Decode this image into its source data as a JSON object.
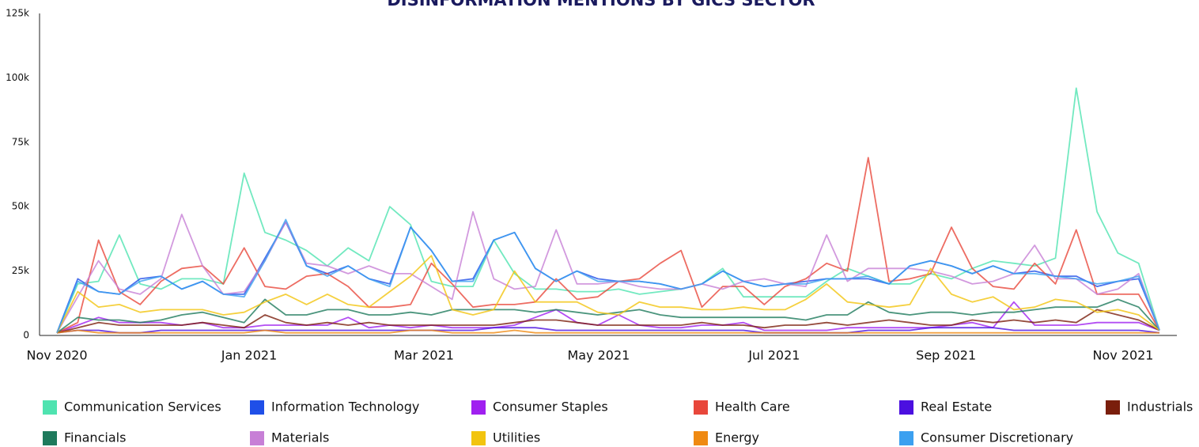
{
  "chart_data": {
    "type": "line",
    "title": "DISINFORMATION MENTIONS BY GICS SECTOR",
    "x": [
      0,
      1,
      2,
      3,
      4,
      5,
      6,
      7,
      8,
      9,
      10,
      11,
      12,
      13,
      14,
      15,
      16,
      17,
      18,
      19,
      20,
      21,
      22,
      23,
      24,
      25,
      26,
      27,
      28,
      29,
      30,
      31,
      32,
      33,
      34,
      35,
      36,
      37,
      38,
      39,
      40,
      41,
      42,
      43,
      44,
      45,
      46,
      47,
      48,
      49,
      50,
      51,
      52,
      53
    ],
    "xlim": [
      0,
      53
    ],
    "xticks": [
      {
        "value": 0,
        "label": "Nov 2020"
      },
      {
        "value": 9.24,
        "label": "Jan 2021"
      },
      {
        "value": 17.64,
        "label": "Mar 2021"
      },
      {
        "value": 26.04,
        "label": "May 2021"
      },
      {
        "value": 34.48,
        "label": "Jul 2021"
      },
      {
        "value": 42.74,
        "label": "Sep 2021"
      },
      {
        "value": 51.25,
        "label": "Nov 2021"
      }
    ],
    "ylim": [
      0,
      125000
    ],
    "yticks": [
      {
        "value": 0,
        "label": "0"
      },
      {
        "value": 25000,
        "label": "25k"
      },
      {
        "value": 50000,
        "label": "50k"
      },
      {
        "value": 75000,
        "label": "75k"
      },
      {
        "value": 100000,
        "label": "100k"
      },
      {
        "value": 125000,
        "label": "125k"
      }
    ],
    "series": [
      {
        "name": "Communication Services",
        "color": "#4fe3b0",
        "values": [
          1000,
          20000,
          21000,
          39000,
          20000,
          18000,
          22000,
          22000,
          20000,
          63000,
          40000,
          37000,
          33000,
          27000,
          34000,
          29000,
          50000,
          43000,
          21000,
          19000,
          19000,
          37000,
          24000,
          18000,
          18000,
          17000,
          17000,
          18000,
          16000,
          17000,
          18000,
          20000,
          26000,
          15000,
          15000,
          15000,
          15000,
          21000,
          26000,
          23000,
          20000,
          20000,
          24000,
          22000,
          26000,
          29000,
          28000,
          27000,
          30000,
          96000,
          48000,
          32000,
          28000,
          2000
        ]
      },
      {
        "name": "Information Technology",
        "color": "#1f4fe8",
        "values": [
          1000,
          22000,
          17000,
          16000,
          22000,
          23000,
          18000,
          21000,
          16000,
          16000,
          30000,
          44000,
          27000,
          24000,
          27000,
          22000,
          20000,
          42000,
          33000,
          21000,
          22000,
          37000,
          40000,
          26000,
          21000,
          25000,
          22000,
          21000,
          21000,
          20000,
          18000,
          20000,
          25000,
          21000,
          19000,
          20000,
          21000,
          22000,
          22000,
          22000,
          20000,
          27000,
          29000,
          27000,
          24000,
          27000,
          24000,
          25000,
          23000,
          23000,
          19000,
          21000,
          22000,
          2000
        ]
      },
      {
        "name": "Consumer Staples",
        "color": "#a020f0",
        "values": [
          1000,
          4000,
          7000,
          5000,
          5000,
          5000,
          4000,
          5000,
          3000,
          3000,
          4000,
          4000,
          4000,
          4000,
          7000,
          3000,
          4000,
          3000,
          4000,
          3000,
          3000,
          3000,
          4000,
          7000,
          10000,
          5000,
          4000,
          8000,
          4000,
          3000,
          3000,
          4000,
          4000,
          5000,
          2000,
          2000,
          2000,
          2000,
          3000,
          3000,
          3000,
          3000,
          3000,
          4000,
          5000,
          3000,
          13000,
          4000,
          4000,
          4000,
          5000,
          5000,
          5000,
          2000
        ]
      },
      {
        "name": "Health Care",
        "color": "#e8473b",
        "values": [
          1000,
          5000,
          37000,
          17000,
          12000,
          21000,
          26000,
          27000,
          20000,
          34000,
          19000,
          18000,
          23000,
          24000,
          19000,
          11000,
          11000,
          12000,
          28000,
          20000,
          11000,
          12000,
          12000,
          13000,
          22000,
          14000,
          15000,
          21000,
          22000,
          28000,
          33000,
          11000,
          19000,
          19000,
          12000,
          19000,
          22000,
          28000,
          25000,
          69000,
          21000,
          22000,
          24000,
          42000,
          26000,
          19000,
          18000,
          28000,
          20000,
          41000,
          16000,
          16000,
          16000,
          2000
        ]
      },
      {
        "name": "Real Estate",
        "color": "#4b0fe0",
        "values": [
          1000,
          2000,
          2000,
          1000,
          1000,
          2000,
          2000,
          2000,
          2000,
          2000,
          2000,
          2000,
          2000,
          2000,
          2000,
          2000,
          2000,
          2000,
          2000,
          2000,
          2000,
          3000,
          3000,
          3000,
          2000,
          2000,
          2000,
          2000,
          2000,
          2000,
          2000,
          2000,
          2000,
          2000,
          1000,
          1000,
          1000,
          1000,
          1000,
          2000,
          2000,
          2000,
          3000,
          3000,
          3000,
          3000,
          2000,
          2000,
          2000,
          2000,
          2000,
          2000,
          2000,
          1000
        ]
      },
      {
        "name": "Industrials",
        "color": "#7a1e0c",
        "values": [
          1000,
          3000,
          5000,
          4000,
          4000,
          4000,
          4000,
          5000,
          4000,
          3000,
          8000,
          5000,
          4000,
          5000,
          4000,
          5000,
          4000,
          4000,
          4000,
          4000,
          4000,
          4000,
          5000,
          6000,
          6000,
          5000,
          4000,
          4000,
          4000,
          4000,
          4000,
          5000,
          4000,
          4000,
          3000,
          4000,
          4000,
          5000,
          4000,
          5000,
          6000,
          5000,
          4000,
          4000,
          6000,
          5000,
          6000,
          5000,
          6000,
          5000,
          10000,
          8000,
          6000,
          2000
        ]
      },
      {
        "name": "Financials",
        "color": "#1e7a5c",
        "values": [
          1000,
          7000,
          6000,
          6000,
          5000,
          6000,
          8000,
          9000,
          7000,
          5000,
          14000,
          8000,
          8000,
          10000,
          10000,
          8000,
          8000,
          9000,
          8000,
          10000,
          10000,
          10000,
          10000,
          9000,
          10000,
          9000,
          8000,
          9000,
          10000,
          8000,
          7000,
          7000,
          7000,
          7000,
          7000,
          7000,
          6000,
          8000,
          8000,
          13000,
          9000,
          8000,
          9000,
          9000,
          8000,
          9000,
          9000,
          10000,
          11000,
          11000,
          11000,
          14000,
          11000,
          2000
        ]
      },
      {
        "name": "Materials",
        "color": "#c77fd6",
        "values": [
          1000,
          15000,
          29000,
          18000,
          16000,
          22000,
          47000,
          27000,
          16000,
          17000,
          29000,
          44000,
          28000,
          27000,
          24000,
          27000,
          24000,
          24000,
          19000,
          14000,
          48000,
          22000,
          18000,
          19000,
          41000,
          20000,
          20000,
          21000,
          19000,
          18000,
          18000,
          20000,
          18000,
          21000,
          22000,
          20000,
          19000,
          39000,
          21000,
          26000,
          26000,
          26000,
          25000,
          23000,
          20000,
          21000,
          24000,
          35000,
          22000,
          22000,
          16000,
          18000,
          24000,
          2000
        ]
      },
      {
        "name": "Utilities",
        "color": "#f2c40f",
        "values": [
          1000,
          17000,
          11000,
          12000,
          9000,
          10000,
          10000,
          10000,
          8000,
          9000,
          13000,
          16000,
          12000,
          16000,
          12000,
          11000,
          17000,
          23000,
          31000,
          10000,
          8000,
          10000,
          25000,
          13000,
          13000,
          13000,
          9000,
          8000,
          13000,
          11000,
          11000,
          10000,
          10000,
          11000,
          10000,
          10000,
          14000,
          20000,
          13000,
          12000,
          11000,
          12000,
          26000,
          16000,
          13000,
          15000,
          10000,
          11000,
          14000,
          13000,
          9000,
          10000,
          8000,
          2000
        ]
      },
      {
        "name": "Energy",
        "color": "#ef8a12",
        "values": [
          1000,
          2000,
          1000,
          1000,
          1000,
          1000,
          1000,
          1000,
          1000,
          1000,
          2000,
          1000,
          1000,
          1000,
          1000,
          1000,
          1000,
          2000,
          2000,
          1000,
          1000,
          1000,
          2000,
          1000,
          1000,
          1000,
          1000,
          1000,
          1000,
          1000,
          1000,
          1000,
          1000,
          1000,
          1000,
          1000,
          1000,
          1000,
          1000,
          1000,
          1000,
          1000,
          1000,
          1000,
          1000,
          1000,
          1000,
          1000,
          1000,
          1000,
          1000,
          1000,
          1000,
          1000
        ]
      },
      {
        "name": "Consumer Discretionary",
        "color": "#3ba0f0",
        "values": [
          1000,
          21000,
          17000,
          16000,
          21000,
          23000,
          18000,
          21000,
          16000,
          15000,
          29000,
          45000,
          27000,
          23000,
          27000,
          22000,
          19000,
          42000,
          33000,
          21000,
          21000,
          37000,
          40000,
          26000,
          21000,
          25000,
          21000,
          21000,
          21000,
          20000,
          18000,
          20000,
          25000,
          21000,
          19000,
          20000,
          20000,
          22000,
          22000,
          23000,
          20000,
          27000,
          29000,
          27000,
          24000,
          27000,
          24000,
          24000,
          23000,
          22000,
          20000,
          21000,
          23000,
          2000
        ]
      }
    ]
  }
}
